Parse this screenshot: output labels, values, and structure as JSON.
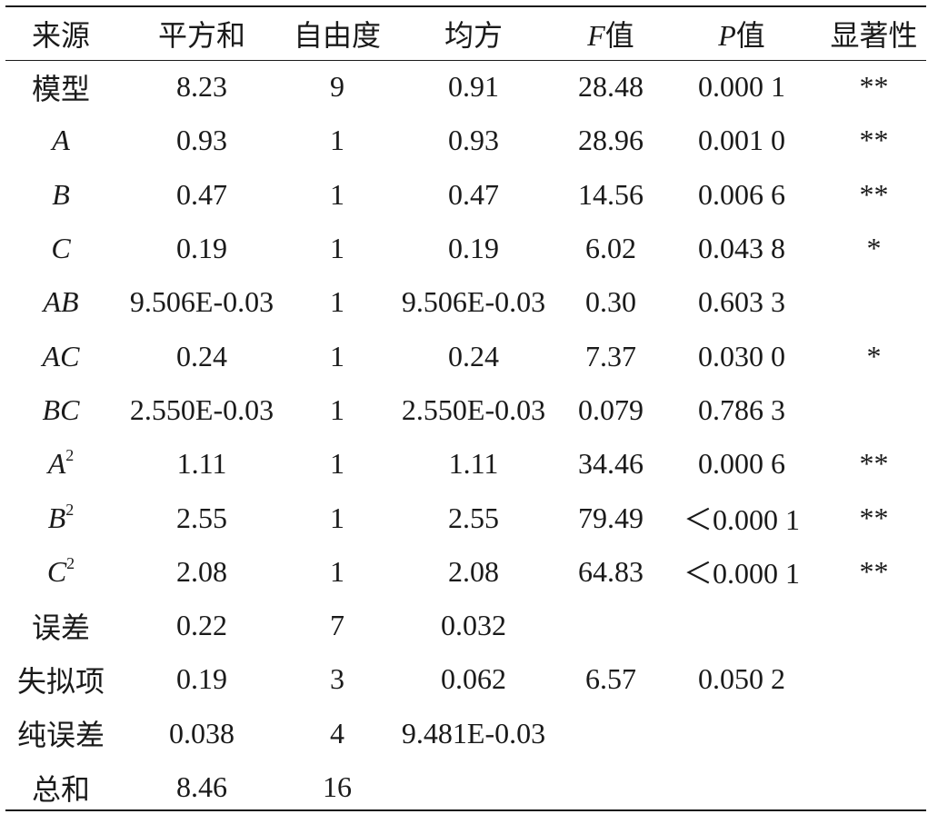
{
  "table": {
    "headers": {
      "source": "来源",
      "ss": "平方和",
      "df": "自由度",
      "ms": "均方",
      "f_letter": "F",
      "f_suffix": "值",
      "p_letter": "P",
      "p_suffix": "值",
      "sig": "显著性"
    },
    "rows": [
      {
        "source": "模型",
        "sup": "",
        "italic": false,
        "ss": "8.23",
        "df": "9",
        "ms": "0.91",
        "f": "28.48",
        "p": "0.000 1",
        "sig": "**"
      },
      {
        "source": "A",
        "sup": "",
        "italic": true,
        "ss": "0.93",
        "df": "1",
        "ms": "0.93",
        "f": "28.96",
        "p": "0.001 0",
        "sig": "**"
      },
      {
        "source": "B",
        "sup": "",
        "italic": true,
        "ss": "0.47",
        "df": "1",
        "ms": "0.47",
        "f": "14.56",
        "p": "0.006 6",
        "sig": "**"
      },
      {
        "source": "C",
        "sup": "",
        "italic": true,
        "ss": "0.19",
        "df": "1",
        "ms": "0.19",
        "f": "6.02",
        "p": "0.043 8",
        "sig": "*"
      },
      {
        "source": "AB",
        "sup": "",
        "italic": true,
        "ss": "9.506E-0.03",
        "df": "1",
        "ms": "9.506E-0.03",
        "f": "0.30",
        "p": "0.603 3",
        "sig": ""
      },
      {
        "source": "AC",
        "sup": "",
        "italic": true,
        "ss": "0.24",
        "df": "1",
        "ms": "0.24",
        "f": "7.37",
        "p": "0.030 0",
        "sig": "*"
      },
      {
        "source": "BC",
        "sup": "",
        "italic": true,
        "ss": "2.550E-0.03",
        "df": "1",
        "ms": "2.550E-0.03",
        "f": "0.079",
        "p": "0.786 3",
        "sig": ""
      },
      {
        "source": "A",
        "sup": "2",
        "italic": true,
        "ss": "1.11",
        "df": "1",
        "ms": "1.11",
        "f": "34.46",
        "p": "0.000 6",
        "sig": "**"
      },
      {
        "source": "B",
        "sup": "2",
        "italic": true,
        "ss": "2.55",
        "df": "1",
        "ms": "2.55",
        "f": "79.49",
        "p": "＜0.000 1",
        "sig": "**"
      },
      {
        "source": "C",
        "sup": "2",
        "italic": true,
        "ss": "2.08",
        "df": "1",
        "ms": "2.08",
        "f": "64.83",
        "p": "＜0.000 1",
        "sig": "**"
      },
      {
        "source": "误差",
        "sup": "",
        "italic": false,
        "ss": "0.22",
        "df": "7",
        "ms": "0.032",
        "f": "",
        "p": "",
        "sig": ""
      },
      {
        "source": "失拟项",
        "sup": "",
        "italic": false,
        "ss": "0.19",
        "df": "3",
        "ms": "0.062",
        "f": "6.57",
        "p": "0.050 2",
        "sig": ""
      },
      {
        "source": "纯误差",
        "sup": "",
        "italic": false,
        "ss": "0.038",
        "df": "4",
        "ms": "9.481E-0.03",
        "f": "",
        "p": "",
        "sig": ""
      },
      {
        "source": "总和",
        "sup": "",
        "italic": false,
        "ss": "8.46",
        "df": "16",
        "ms": "",
        "f": "",
        "p": "",
        "sig": ""
      }
    ]
  }
}
